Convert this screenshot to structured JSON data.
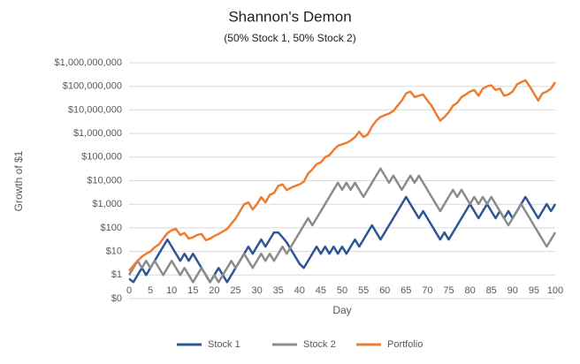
{
  "chart_data": {
    "type": "line",
    "title": "Shannon's Demon",
    "subtitle": "(50% Stock 1, 50% Stock 2)",
    "x_label": "Day",
    "y_label": "Growth of $1",
    "log_y": true,
    "grid": true,
    "legend": "bottom",
    "xlim": [
      0,
      100
    ],
    "xticks": [
      0,
      5,
      10,
      15,
      20,
      25,
      30,
      35,
      40,
      45,
      50,
      55,
      60,
      65,
      70,
      75,
      80,
      85,
      90,
      95,
      100
    ],
    "ylim": [
      0.1,
      1000000000
    ],
    "yticks": [
      {
        "value": 0.1,
        "label": "$0"
      },
      {
        "value": 1,
        "label": "$1"
      },
      {
        "value": 10,
        "label": "$10"
      },
      {
        "value": 100,
        "label": "$100"
      },
      {
        "value": 1000,
        "label": "$1,000"
      },
      {
        "value": 10000,
        "label": "$10,000"
      },
      {
        "value": 100000,
        "label": "$100,000"
      },
      {
        "value": 1000000,
        "label": "$1,000,000"
      },
      {
        "value": 10000000,
        "label": "$10,000,000"
      },
      {
        "value": 100000000,
        "label": "$100,000,000"
      },
      {
        "value": 1000000000,
        "label": "$1,000,000,000"
      }
    ],
    "x": [
      0,
      1,
      2,
      3,
      4,
      5,
      6,
      7,
      8,
      9,
      10,
      11,
      12,
      13,
      14,
      15,
      16,
      17,
      18,
      19,
      20,
      21,
      22,
      23,
      24,
      25,
      26,
      27,
      28,
      29,
      30,
      31,
      32,
      33,
      34,
      35,
      36,
      37,
      38,
      39,
      40,
      41,
      42,
      43,
      44,
      45,
      46,
      47,
      48,
      49,
      50,
      51,
      52,
      53,
      54,
      55,
      56,
      57,
      58,
      59,
      60,
      61,
      62,
      63,
      64,
      65,
      66,
      67,
      68,
      69,
      70,
      71,
      72,
      73,
      74,
      75,
      76,
      77,
      78,
      79,
      80,
      81,
      82,
      83,
      84,
      85,
      86,
      87,
      88,
      89,
      90,
      91,
      92,
      93,
      94,
      95,
      96,
      97,
      98,
      99,
      100
    ],
    "series": [
      {
        "name": "Stock 1",
        "color": "#2f5597",
        "values": [
          0.7,
          0.5,
          1,
          2,
          1,
          2,
          4,
          8,
          16,
          32,
          16,
          8,
          4,
          8,
          4,
          8,
          4,
          2,
          1,
          0.5,
          1,
          2,
          1,
          0.5,
          1,
          2,
          4,
          8,
          16,
          8,
          16,
          32,
          16,
          32,
          64,
          64,
          40,
          24,
          12,
          6,
          3,
          2,
          4,
          8,
          16,
          8,
          16,
          8,
          16,
          8,
          16,
          8,
          16,
          32,
          16,
          32,
          64,
          128,
          64,
          32,
          64,
          128,
          256,
          512,
          1024,
          2048,
          1024,
          512,
          256,
          512,
          256,
          128,
          64,
          32,
          64,
          32,
          64,
          128,
          256,
          512,
          1024,
          512,
          256,
          512,
          1024,
          512,
          256,
          512,
          256,
          512,
          256,
          512,
          1024,
          2048,
          1024,
          512,
          256,
          512,
          1024,
          512,
          1024
        ]
      },
      {
        "name": "Stock 2",
        "color": "#8c8c8c",
        "values": [
          1,
          2,
          4,
          2,
          4,
          2,
          4,
          2,
          1,
          2,
          4,
          2,
          1,
          2,
          1,
          0.5,
          1,
          2,
          1,
          0.5,
          1,
          0.5,
          1,
          2,
          4,
          2,
          4,
          8,
          4,
          2,
          4,
          8,
          4,
          8,
          4,
          8,
          16,
          8,
          16,
          32,
          64,
          128,
          256,
          128,
          256,
          512,
          1024,
          2048,
          4096,
          8192,
          4096,
          8192,
          4096,
          8192,
          4096,
          2048,
          4096,
          8192,
          16384,
          32768,
          16384,
          8192,
          16384,
          8192,
          4096,
          8192,
          16384,
          8192,
          16384,
          8192,
          4096,
          2048,
          1024,
          512,
          1024,
          2048,
          4096,
          2048,
          4096,
          2048,
          1024,
          2048,
          1024,
          2048,
          1024,
          2048,
          1024,
          512,
          256,
          128,
          256,
          512,
          1024,
          512,
          256,
          128,
          64,
          32,
          16,
          32,
          64
        ]
      },
      {
        "name": "Portfolio",
        "color": "#ed7d31",
        "values": [
          1.5,
          2.5,
          4,
          6,
          8,
          10,
          15,
          20,
          35,
          60,
          80,
          90,
          50,
          60,
          35,
          40,
          50,
          55,
          30,
          35,
          45,
          55,
          70,
          90,
          150,
          250,
          500,
          1000,
          1200,
          600,
          1000,
          2000,
          1200,
          2500,
          3000,
          6000,
          7000,
          4000,
          5000,
          6000,
          7000,
          9000,
          20000,
          30000,
          50000,
          60000,
          100000,
          120000,
          200000,
          300000,
          350000,
          400000,
          500000,
          700000,
          1200000,
          700000,
          900000,
          2000000,
          3500000,
          5000000,
          6000000,
          7000000,
          9000000,
          15000000,
          25000000,
          50000000,
          60000000,
          35000000,
          40000000,
          45000000,
          25000000,
          15000000,
          7000000,
          3500000,
          5000000,
          8000000,
          15000000,
          20000000,
          35000000,
          45000000,
          60000000,
          70000000,
          40000000,
          80000000,
          100000000,
          110000000,
          70000000,
          80000000,
          40000000,
          45000000,
          60000000,
          120000000,
          150000000,
          180000000,
          100000000,
          50000000,
          25000000,
          50000000,
          60000000,
          80000000,
          150000000
        ]
      }
    ]
  }
}
